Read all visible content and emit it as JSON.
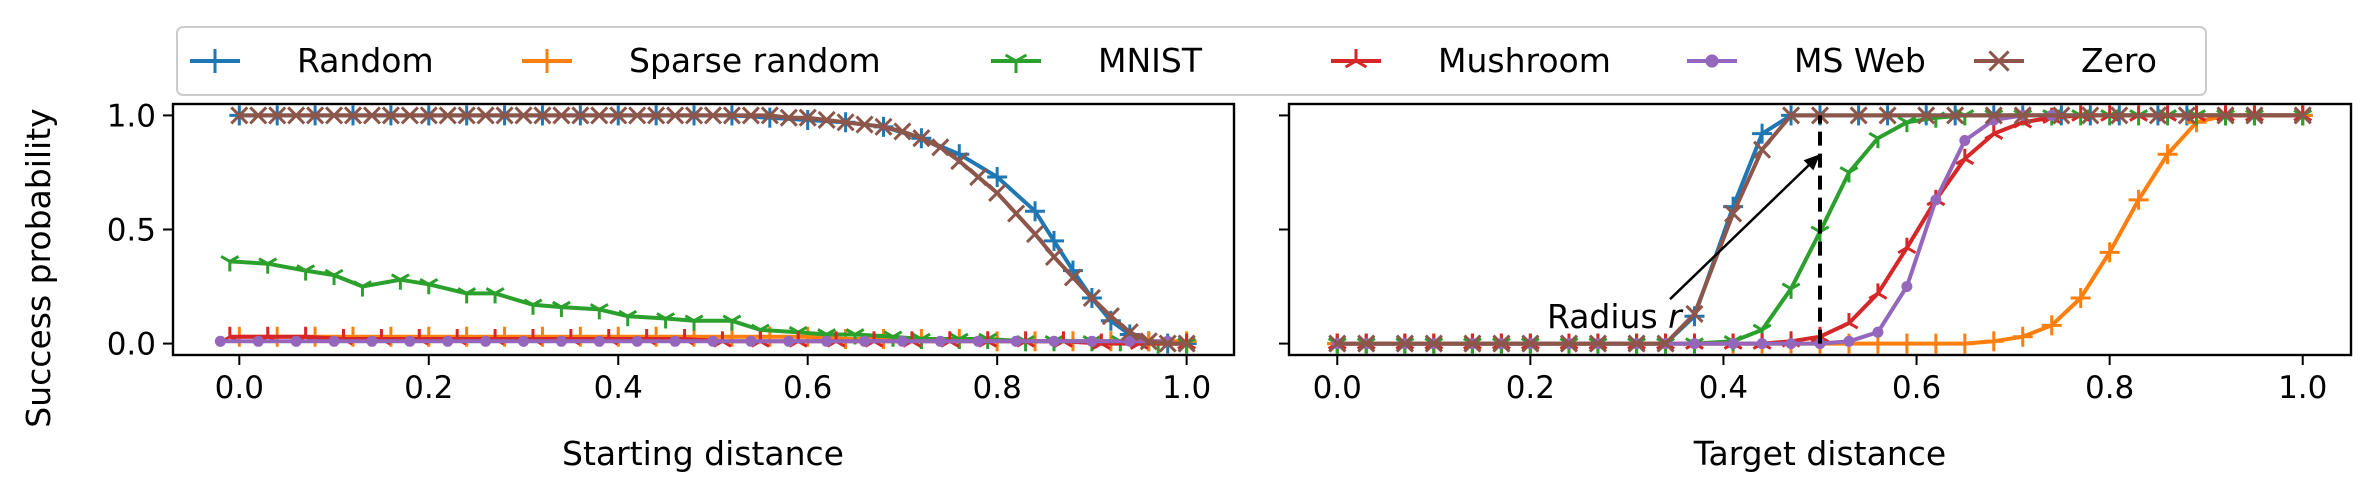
{
  "legend": [
    {
      "name": "Random",
      "color": "#1f77b4",
      "marker": "plus"
    },
    {
      "name": "Sparse random",
      "color": "#ff7f0e",
      "marker": "plus"
    },
    {
      "name": "MNIST",
      "color": "#2ca02c",
      "marker": "tri_down"
    },
    {
      "name": "Mushroom",
      "color": "#d62728",
      "marker": "tri_up"
    },
    {
      "name": "MS Web",
      "color": "#9467bd",
      "marker": "circle"
    },
    {
      "name": "Zero",
      "color": "#8c564b",
      "marker": "x"
    }
  ],
  "ylabel": "Success probability",
  "chart_data": [
    {
      "type": "line",
      "xlabel": "Starting distance",
      "ylabel": "Success probability",
      "xlim": [
        -0.07,
        1.05
      ],
      "ylim": [
        -0.05,
        1.05
      ],
      "xticks": [
        "0.0",
        "0.2",
        "0.4",
        "0.6",
        "0.8",
        "1.0"
      ],
      "yticks": [
        "0.0",
        "0.5",
        "1.0"
      ],
      "grid": false,
      "series": [
        {
          "name": "Random",
          "x": [
            0.0,
            0.04,
            0.08,
            0.12,
            0.16,
            0.2,
            0.24,
            0.28,
            0.32,
            0.36,
            0.4,
            0.44,
            0.48,
            0.52,
            0.56,
            0.6,
            0.64,
            0.68,
            0.72,
            0.76,
            0.8,
            0.84,
            0.86,
            0.88,
            0.9,
            0.92,
            0.94,
            0.96,
            0.98,
            1.0
          ],
          "y": [
            1,
            1,
            1,
            1,
            1,
            1,
            1,
            1,
            1,
            1,
            1,
            1,
            1,
            1,
            0.99,
            0.98,
            0.97,
            0.95,
            0.9,
            0.83,
            0.73,
            0.58,
            0.45,
            0.32,
            0.2,
            0.1,
            0.04,
            0.01,
            0,
            0
          ]
        },
        {
          "name": "Sparse random",
          "x": [
            0.0,
            0.04,
            0.08,
            0.12,
            0.16,
            0.2,
            0.24,
            0.28,
            0.32,
            0.36,
            0.4,
            0.44,
            0.48,
            0.52,
            0.56,
            0.6,
            0.64,
            0.68,
            0.72,
            0.76,
            0.8,
            0.84,
            0.88,
            0.92,
            0.96,
            1.0
          ],
          "y": [
            0.03,
            0.03,
            0.03,
            0.03,
            0.03,
            0.03,
            0.03,
            0.03,
            0.03,
            0.03,
            0.03,
            0.03,
            0.03,
            0.03,
            0.03,
            0.03,
            0.02,
            0.02,
            0.02,
            0.02,
            0.01,
            0.01,
            0.01,
            0.01,
            0.01,
            0.01
          ]
        },
        {
          "name": "MNIST",
          "x": [
            -0.01,
            0.03,
            0.07,
            0.1,
            0.13,
            0.17,
            0.2,
            0.24,
            0.27,
            0.31,
            0.34,
            0.38,
            0.41,
            0.45,
            0.48,
            0.52,
            0.55,
            0.59,
            0.62,
            0.65,
            0.69,
            0.72,
            0.76,
            0.79,
            0.83,
            0.86,
            0.9,
            0.93,
            0.97,
            1.0
          ],
          "y": [
            0.36,
            0.35,
            0.32,
            0.3,
            0.25,
            0.28,
            0.26,
            0.22,
            0.22,
            0.17,
            0.16,
            0.15,
            0.12,
            0.11,
            0.1,
            0.1,
            0.06,
            0.05,
            0.04,
            0.04,
            0.03,
            0.02,
            0.02,
            0.02,
            0.01,
            0.01,
            0.01,
            0.01,
            0,
            0
          ]
        },
        {
          "name": "Mushroom",
          "x": [
            -0.01,
            0.03,
            0.07,
            0.11,
            0.15,
            0.19,
            0.23,
            0.27,
            0.31,
            0.35,
            0.39,
            0.43,
            0.47,
            0.51,
            0.55,
            0.59,
            0.63,
            0.67,
            0.71,
            0.75,
            0.79,
            0.83,
            0.87,
            0.91,
            0.95,
            1.0
          ],
          "y": [
            0.03,
            0.03,
            0.03,
            0.02,
            0.02,
            0.02,
            0.02,
            0.02,
            0.02,
            0.02,
            0.02,
            0.02,
            0.02,
            0.01,
            0.01,
            0.01,
            0.01,
            0.01,
            0.01,
            0.01,
            0.01,
            0.01,
            0.01,
            0,
            0,
            0
          ]
        },
        {
          "name": "MS Web",
          "x": [
            -0.02,
            0.02,
            0.06,
            0.1,
            0.14,
            0.18,
            0.22,
            0.26,
            0.3,
            0.34,
            0.38,
            0.42,
            0.46,
            0.5,
            0.54,
            0.58,
            0.62,
            0.66,
            0.7,
            0.74,
            0.78,
            0.82,
            0.86,
            0.9,
            0.94,
            0.98
          ],
          "y": [
            0.01,
            0.01,
            0.01,
            0.01,
            0.01,
            0.01,
            0.01,
            0.01,
            0.01,
            0.01,
            0.01,
            0.01,
            0.01,
            0.01,
            0.01,
            0.01,
            0.01,
            0.01,
            0.01,
            0.01,
            0.01,
            0.01,
            0.01,
            0.01,
            0.01,
            0.01
          ]
        },
        {
          "name": "Zero",
          "x": [
            0.0,
            0.02,
            0.04,
            0.06,
            0.08,
            0.1,
            0.12,
            0.14,
            0.16,
            0.18,
            0.2,
            0.22,
            0.24,
            0.26,
            0.28,
            0.3,
            0.32,
            0.34,
            0.36,
            0.38,
            0.4,
            0.42,
            0.44,
            0.46,
            0.48,
            0.5,
            0.52,
            0.54,
            0.56,
            0.58,
            0.6,
            0.62,
            0.64,
            0.66,
            0.68,
            0.7,
            0.72,
            0.74,
            0.76,
            0.78,
            0.8,
            0.82,
            0.84,
            0.86,
            0.88,
            0.9,
            0.92,
            0.94,
            0.96,
            0.98,
            1.0
          ],
          "y": [
            1,
            1,
            1,
            1,
            1,
            1,
            1,
            1,
            1,
            1,
            1,
            1,
            1,
            1,
            1,
            1,
            1,
            1,
            1,
            1,
            1,
            1,
            1,
            1,
            1,
            1,
            1,
            1,
            1,
            0.99,
            0.99,
            0.98,
            0.97,
            0.96,
            0.95,
            0.93,
            0.9,
            0.86,
            0.8,
            0.73,
            0.66,
            0.57,
            0.48,
            0.38,
            0.29,
            0.2,
            0.12,
            0.05,
            0.01,
            0,
            0
          ]
        }
      ]
    },
    {
      "type": "line",
      "xlabel": "Target distance",
      "xlim": [
        -0.05,
        1.05
      ],
      "ylim": [
        -0.05,
        1.05
      ],
      "xticks": [
        "0.0",
        "0.2",
        "0.4",
        "0.6",
        "0.8",
        "1.0"
      ],
      "grid": false,
      "annotations": [
        {
          "text": "Radius r",
          "x": 0.5,
          "y": 0.83,
          "vline_x": 0.5,
          "vline_ymax": 1.0
        }
      ],
      "series": [
        {
          "name": "Random",
          "x": [
            0.0,
            0.03,
            0.07,
            0.1,
            0.14,
            0.17,
            0.2,
            0.24,
            0.27,
            0.31,
            0.34,
            0.37,
            0.41,
            0.44,
            0.47,
            0.5,
            0.54,
            0.57,
            0.61,
            0.64,
            0.68,
            0.71,
            0.75,
            0.78,
            0.81,
            0.85,
            0.88,
            0.92,
            0.95,
            1.0
          ],
          "y": [
            0,
            0,
            0,
            0,
            0,
            0,
            0,
            0,
            0,
            0,
            0,
            0.12,
            0.6,
            0.92,
            1,
            1,
            1,
            1,
            1,
            1,
            1,
            1,
            1,
            1,
            1,
            1,
            1,
            1,
            1,
            1
          ]
        },
        {
          "name": "Sparse random",
          "x": [
            0.0,
            0.03,
            0.07,
            0.1,
            0.14,
            0.17,
            0.2,
            0.24,
            0.27,
            0.31,
            0.34,
            0.37,
            0.41,
            0.44,
            0.47,
            0.5,
            0.53,
            0.56,
            0.59,
            0.62,
            0.65,
            0.68,
            0.71,
            0.74,
            0.77,
            0.8,
            0.83,
            0.86,
            0.89,
            0.92,
            0.95,
            1.0
          ],
          "y": [
            0,
            0,
            0,
            0,
            0,
            0,
            0,
            0,
            0,
            0,
            0,
            0,
            0,
            0,
            0,
            0,
            0,
            0,
            0,
            0,
            0,
            0.01,
            0.03,
            0.08,
            0.2,
            0.4,
            0.63,
            0.83,
            0.97,
            1,
            1,
            1
          ]
        },
        {
          "name": "MNIST",
          "x": [
            0.0,
            0.03,
            0.07,
            0.1,
            0.14,
            0.17,
            0.2,
            0.24,
            0.27,
            0.31,
            0.34,
            0.37,
            0.41,
            0.44,
            0.47,
            0.5,
            0.53,
            0.56,
            0.59,
            0.62,
            0.65,
            0.68,
            0.71,
            0.74,
            0.77,
            0.8,
            0.83,
            0.86,
            0.89,
            0.92,
            0.95,
            1.0
          ],
          "y": [
            0,
            0,
            0,
            0,
            0,
            0,
            0,
            0,
            0,
            0,
            0,
            0,
            0.01,
            0.06,
            0.24,
            0.49,
            0.75,
            0.9,
            0.97,
            0.99,
            1,
            1,
            1,
            1,
            1,
            1,
            1,
            1,
            1,
            1,
            1,
            1
          ]
        },
        {
          "name": "Mushroom",
          "x": [
            0.0,
            0.03,
            0.07,
            0.1,
            0.14,
            0.17,
            0.2,
            0.24,
            0.27,
            0.31,
            0.34,
            0.37,
            0.41,
            0.44,
            0.47,
            0.5,
            0.53,
            0.56,
            0.59,
            0.62,
            0.65,
            0.68,
            0.71,
            0.74,
            0.77,
            0.8,
            0.83,
            0.86,
            0.89,
            0.92,
            0.95,
            1.0
          ],
          "y": [
            0,
            0,
            0,
            0,
            0,
            0,
            0,
            0,
            0,
            0,
            0,
            0,
            0,
            0,
            0.01,
            0.03,
            0.09,
            0.22,
            0.42,
            0.63,
            0.81,
            0.92,
            0.97,
            0.99,
            1,
            1,
            1,
            1,
            1,
            1,
            1,
            1
          ]
        },
        {
          "name": "MS Web",
          "x": [
            0.0,
            0.03,
            0.07,
            0.1,
            0.14,
            0.17,
            0.2,
            0.24,
            0.27,
            0.31,
            0.34,
            0.37,
            0.41,
            0.44,
            0.47,
            0.5,
            0.53,
            0.56,
            0.59,
            0.62,
            0.65,
            0.68,
            0.71,
            0.74
          ],
          "y": [
            0,
            0,
            0,
            0,
            0,
            0,
            0,
            0,
            0,
            0,
            0,
            0,
            0,
            0,
            0,
            0,
            0.01,
            0.05,
            0.25,
            0.63,
            0.89,
            0.98,
            1,
            1
          ]
        },
        {
          "name": "Zero",
          "x": [
            0.0,
            0.03,
            0.07,
            0.1,
            0.14,
            0.17,
            0.2,
            0.24,
            0.27,
            0.31,
            0.34,
            0.37,
            0.41,
            0.44,
            0.47,
            0.5,
            0.54,
            0.57,
            0.61,
            0.64,
            0.68,
            0.71,
            0.75,
            0.78,
            0.81,
            0.85,
            0.88,
            0.92,
            0.95,
            1.0
          ],
          "y": [
            0,
            0,
            0,
            0,
            0,
            0,
            0,
            0,
            0,
            0,
            0,
            0.13,
            0.57,
            0.85,
            1,
            1,
            1,
            1,
            1,
            1,
            1,
            1,
            1,
            1,
            1,
            1,
            1,
            1,
            1,
            1
          ]
        }
      ]
    }
  ]
}
